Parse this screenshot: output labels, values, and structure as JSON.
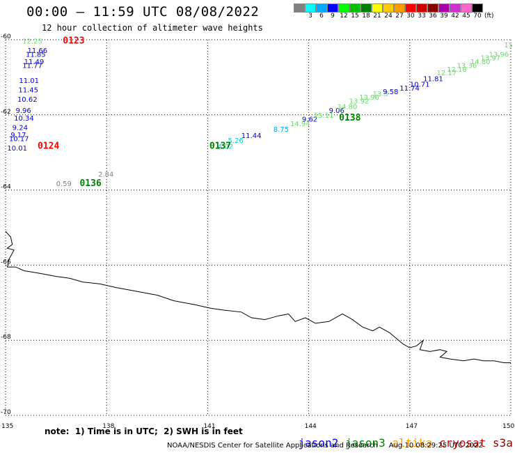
{
  "header": {
    "title": "00:00 – 11:59 UTC 08/08/2022",
    "subtitle": "12 hour collection of altimeter wave heights"
  },
  "legend": {
    "colors": [
      "#808080",
      "#00ffff",
      "#00aaff",
      "#0000ff",
      "#00ff00",
      "#00c000",
      "#008000",
      "#ffff00",
      "#ffcc00",
      "#ff9900",
      "#ff0000",
      "#cc0000",
      "#880000",
      "#aa00aa",
      "#cc33cc",
      "#ff66cc",
      "#000000"
    ],
    "labels": [
      "",
      "3",
      "6",
      "9",
      "12",
      "15",
      "18",
      "21",
      "24",
      "27",
      "30",
      "33",
      "36",
      "39",
      "42",
      "45",
      "70"
    ],
    "unit": "(ft)"
  },
  "axes": {
    "lon_min": 135,
    "lon_max": 150,
    "lat_min": -70,
    "lat_max": -60,
    "lon_ticks": [
      "135",
      "138",
      "141",
      "144",
      "147",
      "150"
    ],
    "lat_ticks": [
      "-60",
      "-62",
      "-64",
      "-66",
      "-68",
      "-70"
    ]
  },
  "passes": [
    {
      "label": "0123",
      "color": "#ff0000",
      "lon": 136.7,
      "lat": -60.1
    },
    {
      "label": "0124",
      "color": "#ff0000",
      "lon": 135.95,
      "lat": -62.9
    },
    {
      "label": "0136",
      "color": "#008000",
      "lon": 137.2,
      "lat": -63.9
    },
    {
      "label": "0137",
      "color": "#008000",
      "lon": 141.05,
      "lat": -62.9
    },
    {
      "label": "0138",
      "color": "#008000",
      "lon": 144.9,
      "lat": -62.15
    }
  ],
  "wave_heights": [
    {
      "v": "12.25",
      "color": "#66dd66",
      "lon": 135.5,
      "lat": -60.1
    },
    {
      "v": "11.66",
      "color": "#0000cc",
      "lon": 135.65,
      "lat": -60.35
    },
    {
      "v": "11.85",
      "color": "#0000cc",
      "lon": 135.6,
      "lat": -60.45
    },
    {
      "v": "11.49",
      "color": "#0000cc",
      "lon": 135.55,
      "lat": -60.65
    },
    {
      "v": "11.77",
      "color": "#0000cc",
      "lon": 135.5,
      "lat": -60.75
    },
    {
      "v": "11.01",
      "color": "#0000cc",
      "lon": 135.4,
      "lat": -61.15
    },
    {
      "v": "11.45",
      "color": "#0000cc",
      "lon": 135.38,
      "lat": -61.4
    },
    {
      "v": "10.62",
      "color": "#0000cc",
      "lon": 135.35,
      "lat": -61.65
    },
    {
      "v": "9.96",
      "color": "#0000cc",
      "lon": 135.3,
      "lat": -61.95
    },
    {
      "v": "10.34",
      "color": "#0000cc",
      "lon": 135.25,
      "lat": -62.15
    },
    {
      "v": "9.24",
      "color": "#0000cc",
      "lon": 135.2,
      "lat": -62.4
    },
    {
      "v": "9.17",
      "color": "#0000cc",
      "lon": 135.15,
      "lat": -62.6
    },
    {
      "v": "10.17",
      "color": "#0000cc",
      "lon": 135.1,
      "lat": -62.7
    },
    {
      "v": "10.01",
      "color": "#0000cc",
      "lon": 135.05,
      "lat": -62.95
    },
    {
      "v": "2.84",
      "color": "#808080",
      "lon": 137.75,
      "lat": -63.65
    },
    {
      "v": "0.59",
      "color": "#808080",
      "lon": 136.5,
      "lat": -63.9
    },
    {
      "v": "4.02",
      "color": "#00cccc",
      "lon": 141.3,
      "lat": -62.9
    },
    {
      "v": "5.26",
      "color": "#00cccc",
      "lon": 141.6,
      "lat": -62.75
    },
    {
      "v": "11.44",
      "color": "#0000cc",
      "lon": 142.0,
      "lat": -62.62
    },
    {
      "v": "8.75",
      "color": "#00aaff",
      "lon": 142.95,
      "lat": -62.45
    },
    {
      "v": "14.94",
      "color": "#66dd66",
      "lon": 143.45,
      "lat": -62.3
    },
    {
      "v": "9.62",
      "color": "#0000cc",
      "lon": 143.8,
      "lat": -62.18
    },
    {
      "v": "15.11",
      "color": "#66dd66",
      "lon": 144.15,
      "lat": -62.08
    },
    {
      "v": "9.06",
      "color": "#0000cc",
      "lon": 144.6,
      "lat": -61.95
    },
    {
      "v": "14.80",
      "color": "#66dd66",
      "lon": 144.85,
      "lat": -61.85
    },
    {
      "v": "13.92",
      "color": "#66dd66",
      "lon": 145.2,
      "lat": -61.7
    },
    {
      "v": "13.96",
      "color": "#66dd66",
      "lon": 145.5,
      "lat": -61.6
    },
    {
      "v": "13.3",
      "color": "#66dd66",
      "lon": 145.9,
      "lat": -61.5
    },
    {
      "v": "9.58",
      "color": "#0000cc",
      "lon": 146.2,
      "lat": -61.45
    },
    {
      "v": "11.74",
      "color": "#0000cc",
      "lon": 146.7,
      "lat": -61.35
    },
    {
      "v": "10.71",
      "color": "#0000cc",
      "lon": 147.0,
      "lat": -61.25
    },
    {
      "v": "11.81",
      "color": "#0000cc",
      "lon": 147.4,
      "lat": -61.1
    },
    {
      "v": "12.17",
      "color": "#66dd66",
      "lon": 147.8,
      "lat": -60.95
    },
    {
      "v": "12.18",
      "color": "#66dd66",
      "lon": 148.1,
      "lat": -60.85
    },
    {
      "v": "13.36",
      "color": "#66dd66",
      "lon": 148.4,
      "lat": -60.75
    },
    {
      "v": "14.80",
      "color": "#66dd66",
      "lon": 148.8,
      "lat": -60.65
    },
    {
      "v": "13.97",
      "color": "#66dd66",
      "lon": 149.1,
      "lat": -60.55
    },
    {
      "v": "13.96",
      "color": "#66dd66",
      "lon": 149.35,
      "lat": -60.45
    },
    {
      "v": "15",
      "color": "#66dd66",
      "lon": 149.8,
      "lat": -60.2
    }
  ],
  "coastline": [
    [
      135.0,
      -65.1
    ],
    [
      135.15,
      -65.25
    ],
    [
      135.2,
      -65.45
    ],
    [
      135.05,
      -65.55
    ],
    [
      135.25,
      -65.6
    ],
    [
      135.1,
      -65.85
    ],
    [
      135.05,
      -66.05
    ],
    [
      135.3,
      -66.05
    ],
    [
      135.55,
      -66.15
    ],
    [
      135.9,
      -66.2
    ],
    [
      136.2,
      -66.25
    ],
    [
      136.5,
      -66.3
    ],
    [
      136.9,
      -66.35
    ],
    [
      137.3,
      -66.45
    ],
    [
      137.8,
      -66.5
    ],
    [
      138.3,
      -66.6
    ],
    [
      138.9,
      -66.7
    ],
    [
      139.5,
      -66.8
    ],
    [
      140.0,
      -66.95
    ],
    [
      140.6,
      -67.05
    ],
    [
      141.1,
      -67.15
    ],
    [
      141.5,
      -67.2
    ],
    [
      142.0,
      -67.25
    ],
    [
      142.3,
      -67.4
    ],
    [
      142.7,
      -67.45
    ],
    [
      143.1,
      -67.35
    ],
    [
      143.4,
      -67.3
    ],
    [
      143.6,
      -67.5
    ],
    [
      143.9,
      -67.4
    ],
    [
      144.2,
      -67.55
    ],
    [
      144.6,
      -67.5
    ],
    [
      145.0,
      -67.3
    ],
    [
      145.3,
      -67.45
    ],
    [
      145.6,
      -67.65
    ],
    [
      145.9,
      -67.75
    ],
    [
      146.1,
      -67.65
    ],
    [
      146.4,
      -67.8
    ],
    [
      146.6,
      -67.95
    ],
    [
      146.8,
      -68.1
    ],
    [
      147.0,
      -68.2
    ],
    [
      147.2,
      -68.15
    ],
    [
      147.4,
      -68.0
    ],
    [
      147.3,
      -68.25
    ],
    [
      147.6,
      -68.3
    ],
    [
      147.9,
      -68.25
    ],
    [
      148.1,
      -68.3
    ],
    [
      147.9,
      -68.45
    ],
    [
      148.2,
      -68.5
    ],
    [
      148.6,
      -68.55
    ],
    [
      148.9,
      -68.5
    ],
    [
      149.2,
      -68.55
    ],
    [
      149.5,
      -68.55
    ],
    [
      149.8,
      -68.6
    ],
    [
      150.0,
      -68.6
    ]
  ],
  "footer": {
    "note": "note:  1) Time is in UTC;  2) SWH is in feet",
    "sat_jason2": "jason2",
    "sat_jason3": "jason3",
    "sat_altika": "altika",
    "sat_cryosat": "cryosat",
    "sat_s3a": "s3a",
    "color_jason2": "#0000ff",
    "color_jason3": "#008000",
    "color_altika": "#ff9900",
    "color_cryosat": "#cc0000",
    "color_s3a": "#880000",
    "credit": "NOAA/NESDIS Center for Satellite Applications and Research     Aug 10 08:29:25 UTC 2022"
  }
}
